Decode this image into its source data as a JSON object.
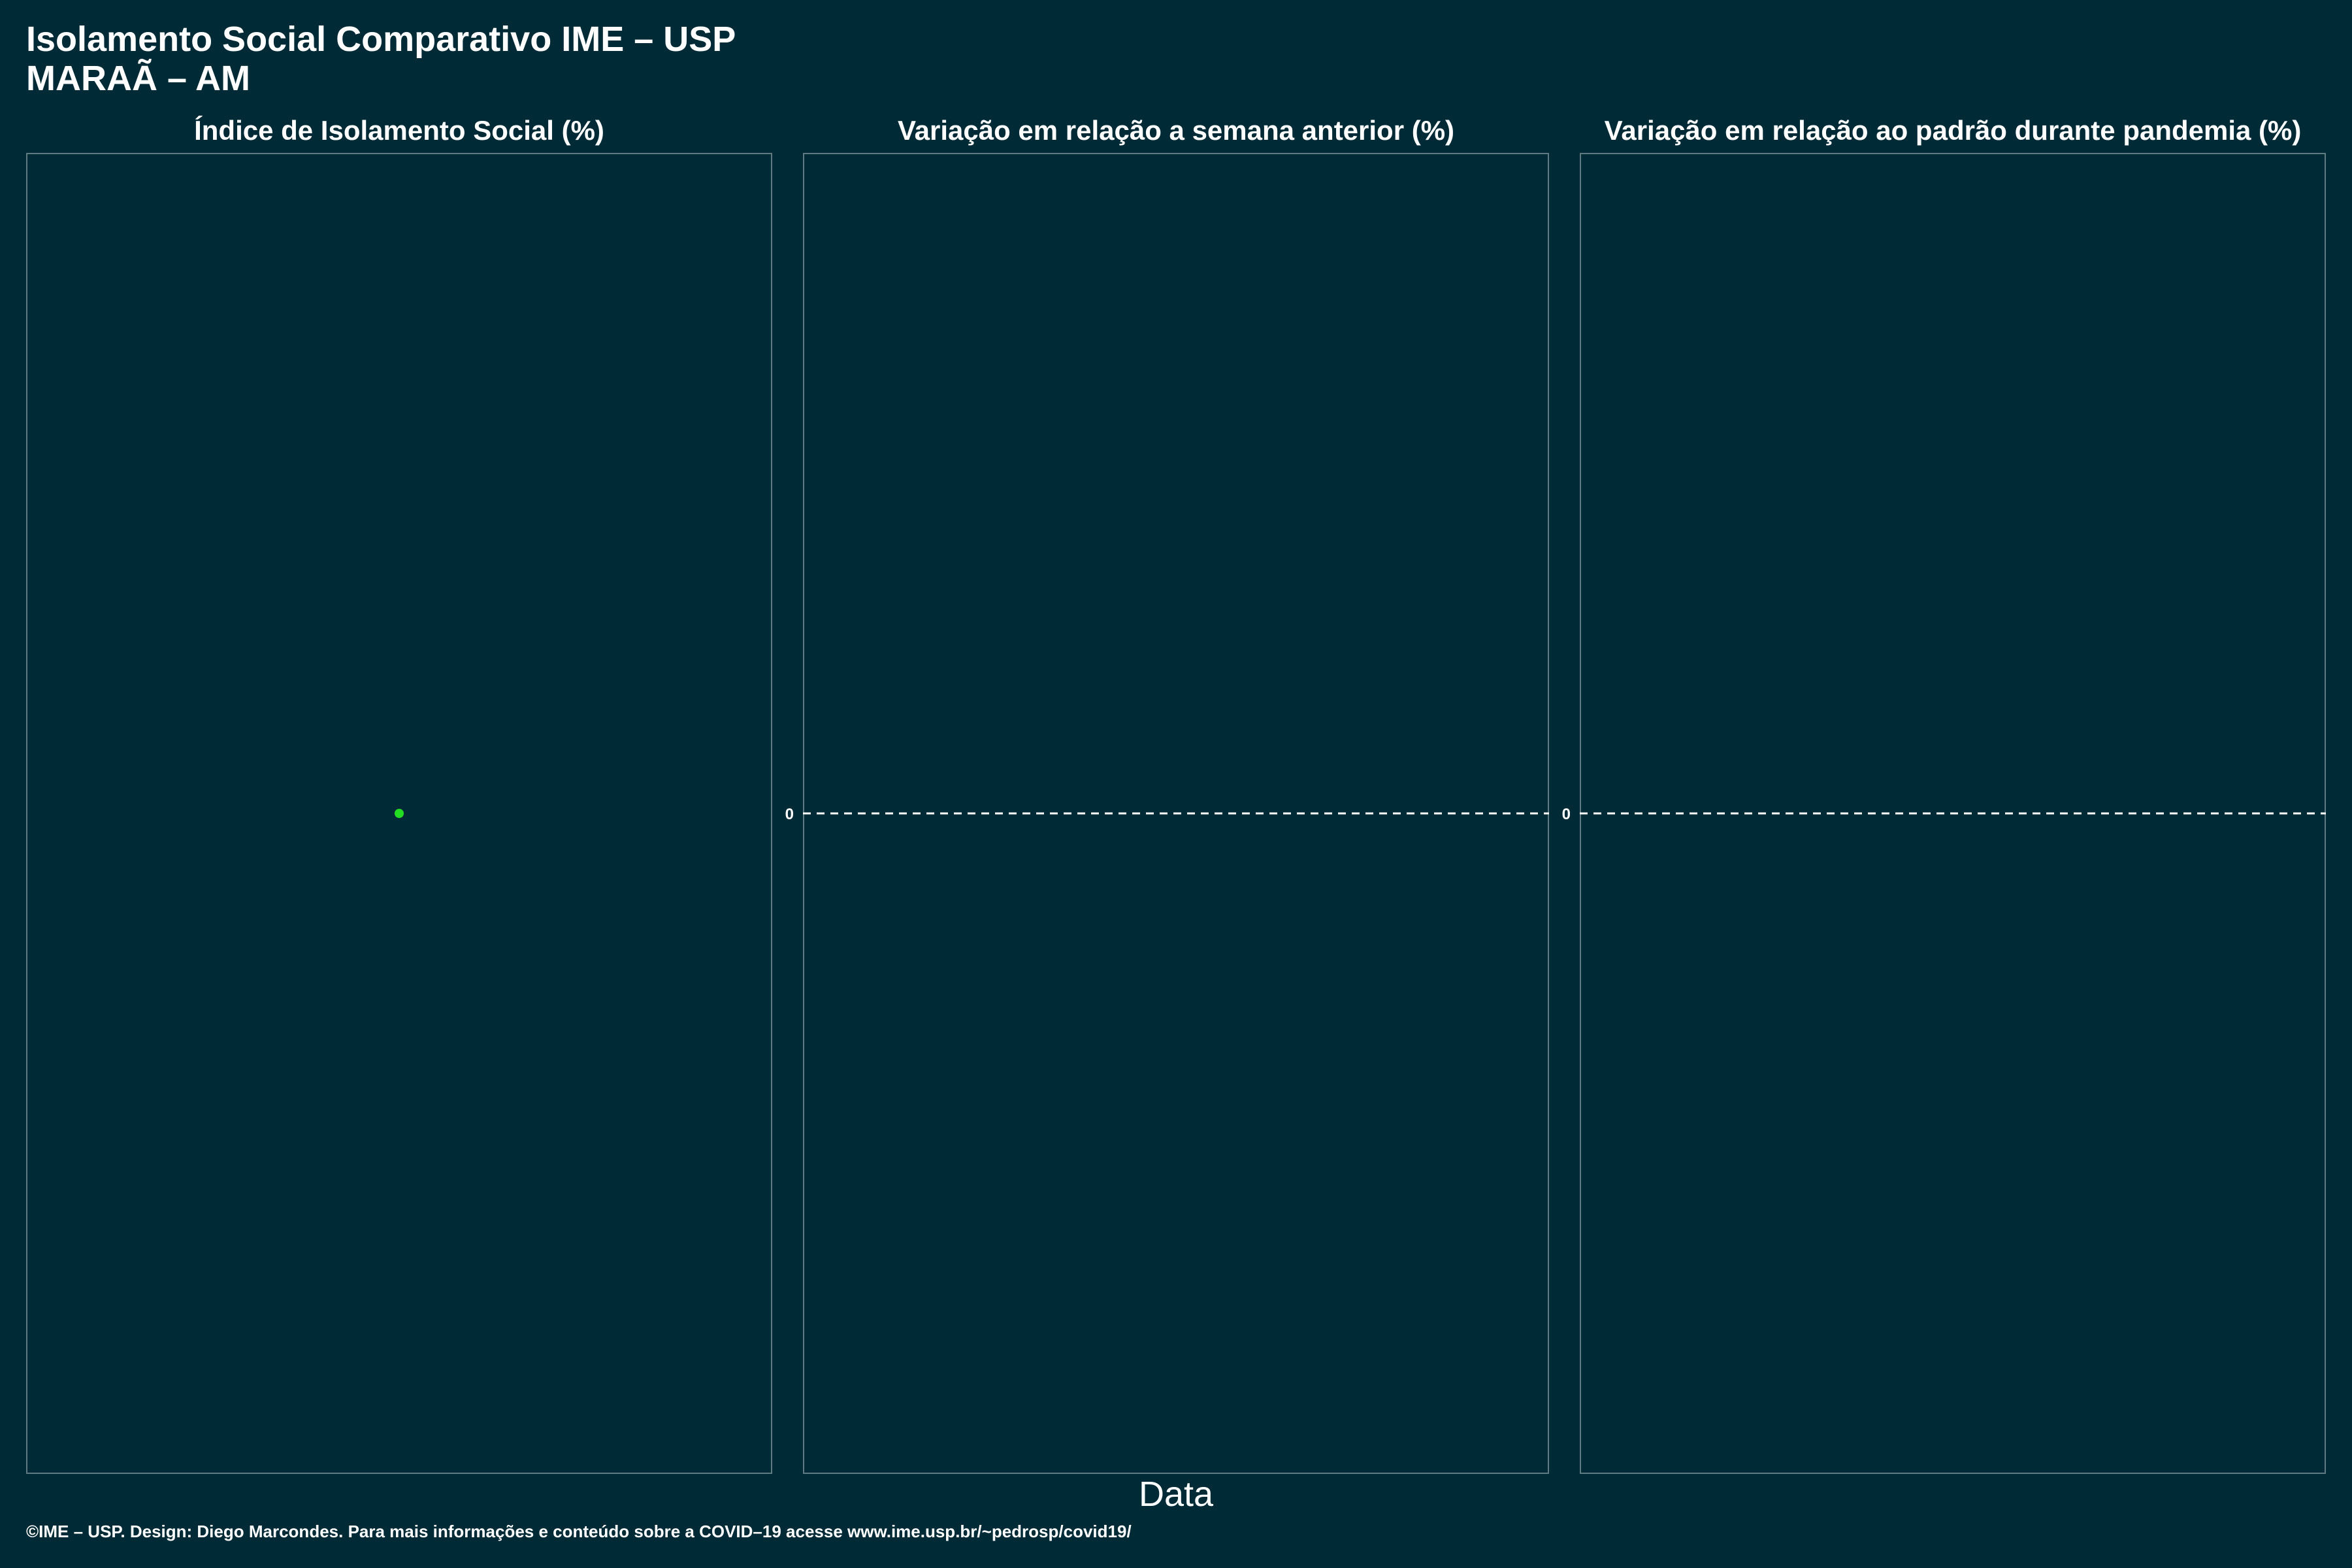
{
  "title": "Isolamento Social Comparativo IME – USP",
  "subtitle": "MARAÃ – AM",
  "xlabel": "Data",
  "footer": "©IME – USP. Design: Diego Marcondes. Para mais informações e conteúdo sobre a COVID–19 acesse www.ime.usp.br/~pedrosp/covid19/",
  "colors": {
    "background": "#002b36",
    "panel_border": "#5f7a82",
    "point": "#22dd22",
    "reference_line": "#ffffff"
  },
  "chart_data": [
    {
      "type": "scatter",
      "title": "Índice de Isolamento Social (%)",
      "points": [
        {
          "x": 0,
          "y": 0
        }
      ],
      "xlim": [
        -1,
        1
      ],
      "ylim": [
        -1,
        1
      ],
      "grid": false
    },
    {
      "type": "line",
      "title": "Variação em relação a semana anterior (%)",
      "series": [],
      "reference_line": {
        "y": 0,
        "style": "dashed"
      },
      "yticks": [
        "0"
      ],
      "xlim": [
        -1,
        1
      ],
      "ylim": [
        -1,
        1
      ],
      "grid": false
    },
    {
      "type": "line",
      "title": "Variação em relação ao padrão durante pandemia (%)",
      "series": [],
      "reference_line": {
        "y": 0,
        "style": "dashed"
      },
      "yticks": [
        "0"
      ],
      "xlim": [
        -1,
        1
      ],
      "ylim": [
        -1,
        1
      ],
      "grid": false
    }
  ]
}
